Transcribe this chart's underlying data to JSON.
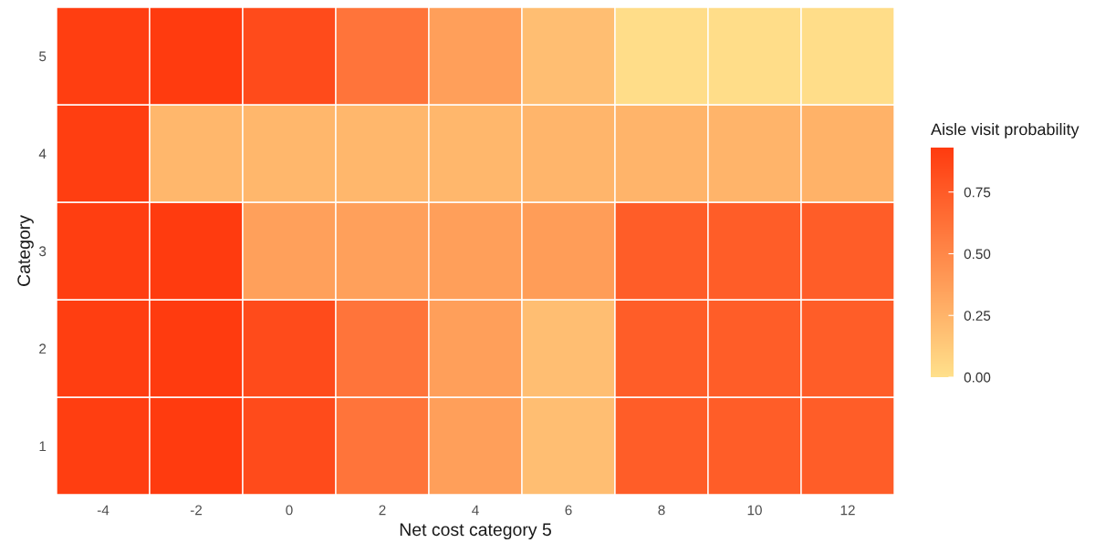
{
  "chart_data": {
    "type": "heatmap",
    "xlabel": "Net cost category 5",
    "ylabel": "Category",
    "clabel": "Aisle visit probability",
    "categories": [
      "-4",
      "-2",
      "0",
      "2",
      "4",
      "6",
      "8",
      "10",
      "12"
    ],
    "y_categories": [
      "5",
      "4",
      "3",
      "2",
      "1"
    ],
    "cells": [
      [
        0.91,
        0.93,
        0.84,
        0.61,
        0.37,
        0.19,
        0.02,
        0.02,
        0.02
      ],
      [
        0.91,
        0.23,
        0.23,
        0.23,
        0.23,
        0.24,
        0.25,
        0.25,
        0.26
      ],
      [
        0.91,
        0.93,
        0.36,
        0.36,
        0.37,
        0.38,
        0.74,
        0.74,
        0.74
      ],
      [
        0.91,
        0.93,
        0.84,
        0.61,
        0.37,
        0.19,
        0.74,
        0.74,
        0.74
      ],
      [
        0.91,
        0.93,
        0.84,
        0.61,
        0.37,
        0.19,
        0.74,
        0.74,
        0.74
      ]
    ],
    "colors": [
      "#ffe08b",
      "#ff3b0f"
    ],
    "clim": [
      0,
      0.93
    ],
    "cticks": [
      {
        "value": 0,
        "label": "0.00"
      },
      {
        "value": 0.25,
        "label": "0.25"
      },
      {
        "value": 0.5,
        "label": "0.50"
      },
      {
        "value": 0.75,
        "label": "0.75"
      }
    ]
  }
}
